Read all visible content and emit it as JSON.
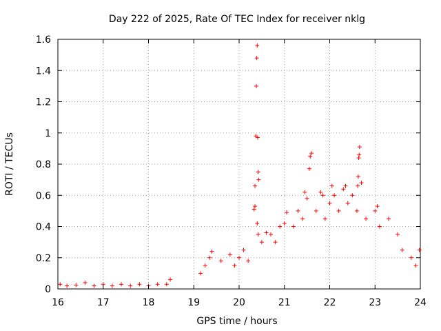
{
  "chart_data": {
    "type": "scatter",
    "title": "Day 222 of 2025, Rate Of TEC Index for receiver nklg",
    "xlabel": "GPS time / hours",
    "ylabel": "ROTI / TECUs",
    "xlim": [
      16,
      24
    ],
    "ylim": [
      0,
      1.6
    ],
    "x_ticks": [
      "16",
      "17",
      "18",
      "19",
      "20",
      "21",
      "22",
      "23",
      "24"
    ],
    "y_ticks": [
      "0",
      "0.2",
      "0.4",
      "0.6",
      "0.8",
      "1",
      "1.2",
      "1.4",
      "1.6"
    ],
    "grid": true,
    "marker": "+",
    "color": "#ff0000",
    "series": [
      {
        "name": "ROTI",
        "points": [
          [
            16.05,
            0.03
          ],
          [
            16.2,
            0.02
          ],
          [
            16.4,
            0.025
          ],
          [
            16.6,
            0.04
          ],
          [
            16.8,
            0.02
          ],
          [
            17.0,
            0.03
          ],
          [
            17.2,
            0.02
          ],
          [
            17.4,
            0.03
          ],
          [
            17.6,
            0.02
          ],
          [
            17.8,
            0.03
          ],
          [
            18.0,
            0.02
          ],
          [
            18.2,
            0.03
          ],
          [
            18.4,
            0.03
          ],
          [
            18.48,
            0.06
          ],
          [
            19.15,
            0.1
          ],
          [
            19.25,
            0.15
          ],
          [
            19.35,
            0.2
          ],
          [
            19.4,
            0.24
          ],
          [
            19.6,
            0.18
          ],
          [
            19.8,
            0.22
          ],
          [
            19.9,
            0.15
          ],
          [
            20.0,
            0.2
          ],
          [
            20.1,
            0.25
          ],
          [
            20.2,
            0.18
          ],
          [
            20.33,
            0.51
          ],
          [
            20.35,
            0.53
          ],
          [
            20.37,
            0.98
          ],
          [
            20.38,
            1.3
          ],
          [
            20.39,
            1.48
          ],
          [
            20.4,
            1.56
          ],
          [
            20.41,
            0.97
          ],
          [
            20.42,
            0.75
          ],
          [
            20.43,
            0.7
          ],
          [
            20.35,
            0.66
          ],
          [
            20.4,
            0.42
          ],
          [
            20.42,
            0.35
          ],
          [
            20.5,
            0.3
          ],
          [
            20.6,
            0.36
          ],
          [
            20.7,
            0.35
          ],
          [
            20.8,
            0.3
          ],
          [
            20.9,
            0.4
          ],
          [
            21.0,
            0.42
          ],
          [
            21.05,
            0.49
          ],
          [
            21.2,
            0.4
          ],
          [
            21.3,
            0.5
          ],
          [
            21.4,
            0.45
          ],
          [
            21.45,
            0.62
          ],
          [
            21.5,
            0.58
          ],
          [
            21.55,
            0.77
          ],
          [
            21.57,
            0.85
          ],
          [
            21.6,
            0.87
          ],
          [
            21.7,
            0.5
          ],
          [
            21.8,
            0.62
          ],
          [
            21.85,
            0.6
          ],
          [
            21.9,
            0.45
          ],
          [
            22.0,
            0.55
          ],
          [
            22.05,
            0.66
          ],
          [
            22.1,
            0.6
          ],
          [
            22.2,
            0.5
          ],
          [
            22.3,
            0.64
          ],
          [
            22.35,
            0.66
          ],
          [
            22.4,
            0.55
          ],
          [
            22.5,
            0.6
          ],
          [
            22.6,
            0.5
          ],
          [
            22.62,
            0.66
          ],
          [
            22.63,
            0.72
          ],
          [
            22.64,
            0.84
          ],
          [
            22.65,
            0.86
          ],
          [
            22.66,
            0.91
          ],
          [
            22.7,
            0.68
          ],
          [
            22.8,
            0.45
          ],
          [
            23.0,
            0.5
          ],
          [
            23.05,
            0.53
          ],
          [
            23.1,
            0.4
          ],
          [
            23.3,
            0.45
          ],
          [
            23.5,
            0.35
          ],
          [
            23.6,
            0.25
          ],
          [
            23.8,
            0.2
          ],
          [
            23.9,
            0.15
          ],
          [
            23.98,
            0.25
          ]
        ]
      }
    ]
  }
}
